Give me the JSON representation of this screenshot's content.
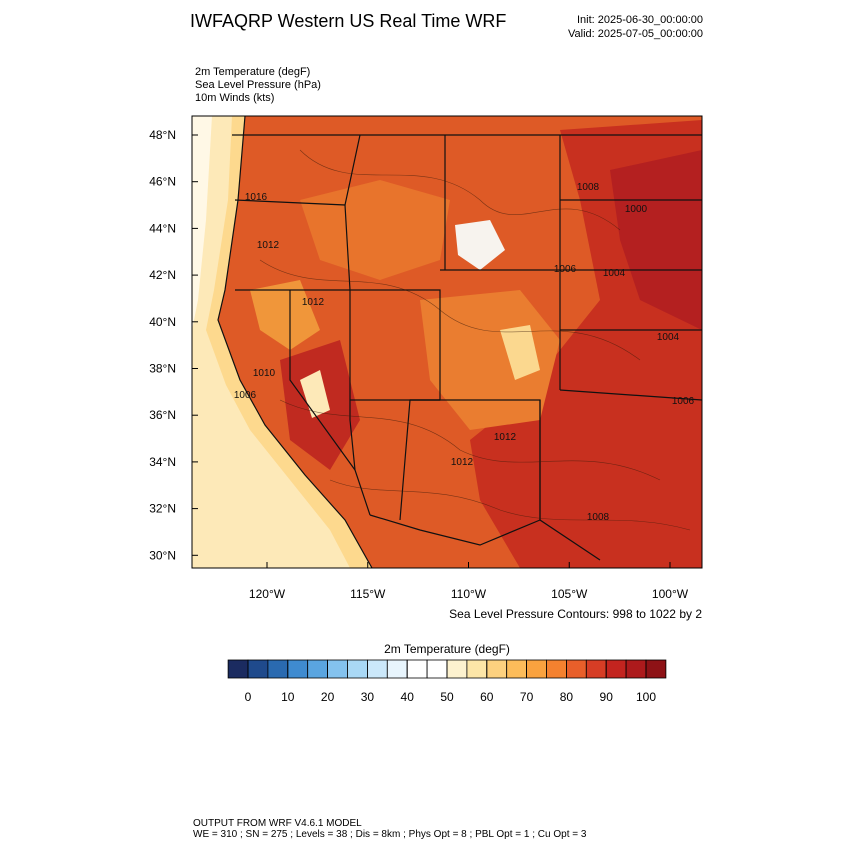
{
  "header": {
    "title": "IWFAQRP Western US Real Time WRF",
    "init": "Init: 2025-06-30_00:00:00",
    "valid": "Valid: 2025-07-05_00:00:00"
  },
  "fields": [
    "2m Temperature   (degF)",
    "Sea Level Pressure   (hPa)",
    "10m Winds   (kts)"
  ],
  "map": {
    "lat_labels": [
      "48°N",
      "46°N",
      "44°N",
      "42°N",
      "40°N",
      "38°N",
      "36°N",
      "34°N",
      "32°N",
      "30°N"
    ],
    "lon_labels": [
      "120°W",
      "115°W",
      "110°W",
      "105°W",
      "100°W"
    ],
    "contour_labels": [
      "1016",
      "1012",
      "1008",
      "1006",
      "1000",
      "1006",
      "1004",
      "1010",
      "1012",
      "1004",
      "1006",
      "1012",
      "1012",
      "1008"
    ],
    "contour_note": "Sea Level Pressure Contours: 998 to 1022 by 2"
  },
  "colorbar": {
    "title": "2m Temperature  (degF)",
    "ticks": [
      0,
      10,
      20,
      30,
      40,
      50,
      60,
      70,
      80,
      90,
      100
    ],
    "colors": [
      "#1b2b60",
      "#1f4a8c",
      "#2a6ab0",
      "#3f8bd0",
      "#5aa5e0",
      "#84c2ee",
      "#a9d8f5",
      "#cbe8fa",
      "#e8f5fd",
      "#ffffff",
      "#ffffff",
      "#fdf2cf",
      "#fde6a8",
      "#fdd17f",
      "#fcbc5a",
      "#f9a23f",
      "#f4812f",
      "#e85f2a",
      "#d63d25",
      "#c3241f",
      "#ad1a1c",
      "#8e1216"
    ]
  },
  "footer": {
    "line1": "OUTPUT FROM WRF V4.6.1 MODEL",
    "line2": "WE = 310 ; SN = 275 ; Levels = 38 ; Dis = 8km ; Phys Opt = 8 ; PBL Opt = 1 ; Cu Opt = 3"
  }
}
